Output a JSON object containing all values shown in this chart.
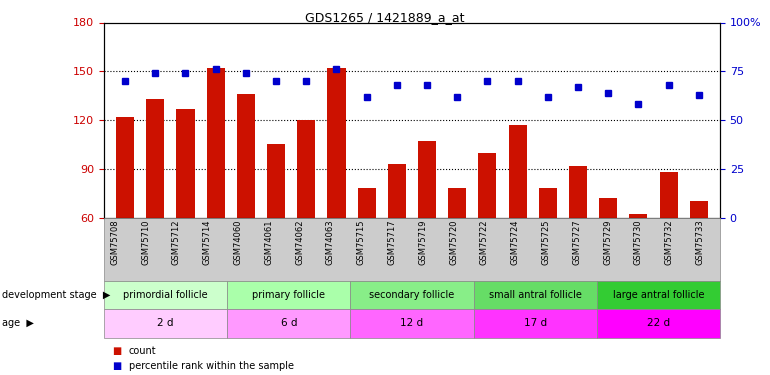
{
  "title": "GDS1265 / 1421889_a_at",
  "samples": [
    "GSM75708",
    "GSM75710",
    "GSM75712",
    "GSM75714",
    "GSM74060",
    "GSM74061",
    "GSM74062",
    "GSM74063",
    "GSM75715",
    "GSM75717",
    "GSM75719",
    "GSM75720",
    "GSM75722",
    "GSM75724",
    "GSM75725",
    "GSM75727",
    "GSM75729",
    "GSM75730",
    "GSM75732",
    "GSM75733"
  ],
  "counts": [
    122,
    133,
    127,
    152,
    136,
    105,
    120,
    152,
    78,
    93,
    107,
    78,
    100,
    117,
    78,
    92,
    72,
    62,
    88,
    70
  ],
  "percentiles": [
    70,
    74,
    74,
    76,
    74,
    70,
    70,
    76,
    62,
    68,
    68,
    62,
    70,
    70,
    62,
    67,
    64,
    58,
    68,
    63
  ],
  "ylim_left": [
    60,
    180
  ],
  "ylim_right": [
    0,
    100
  ],
  "yticks_left": [
    60,
    90,
    120,
    150,
    180
  ],
  "yticks_right": [
    0,
    25,
    50,
    75,
    100
  ],
  "bar_color": "#cc1100",
  "dot_color": "#0000cc",
  "groups": [
    {
      "label": "primordial follicle",
      "age": "2 d",
      "start": 0,
      "end": 4,
      "stage_color": "#ccffcc",
      "age_color": "#ffccff"
    },
    {
      "label": "primary follicle",
      "age": "6 d",
      "start": 4,
      "end": 8,
      "stage_color": "#aaffaa",
      "age_color": "#ff99ff"
    },
    {
      "label": "secondary follicle",
      "age": "12 d",
      "start": 8,
      "end": 12,
      "stage_color": "#88ee88",
      "age_color": "#ff66ff"
    },
    {
      "label": "small antral follicle",
      "age": "17 d",
      "start": 12,
      "end": 16,
      "stage_color": "#66dd66",
      "age_color": "#ff33ff"
    },
    {
      "label": "large antral follicle",
      "age": "22 d",
      "start": 16,
      "end": 20,
      "stage_color": "#33cc33",
      "age_color": "#ff00ff"
    }
  ],
  "legend_items": [
    {
      "color": "#cc1100",
      "label": "count"
    },
    {
      "color": "#0000cc",
      "label": "percentile rank within the sample"
    }
  ],
  "background_color": "#ffffff",
  "tick_color_left": "#cc0000",
  "tick_color_right": "#0000cc",
  "xtick_bg": "#cccccc"
}
